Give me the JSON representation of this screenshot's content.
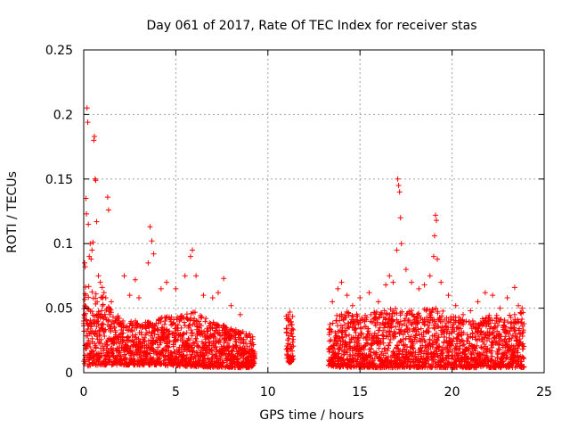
{
  "chart_data": {
    "type": "scatter",
    "title": "Day 061 of 2017, Rate Of TEC Index for receiver stas",
    "xlabel": "GPS time / hours",
    "ylabel": "ROTI / TECUs",
    "xlim": [
      0,
      25
    ],
    "ylim": [
      0,
      0.25
    ],
    "xticks": [
      0,
      5,
      10,
      15,
      20,
      25
    ],
    "yticks": [
      0,
      0.05,
      0.1,
      0.15,
      0.2,
      0.25
    ],
    "xtick_labels": [
      "0",
      "5",
      "10",
      "15",
      "20",
      "25"
    ],
    "ytick_labels": [
      "0",
      "0.05",
      "0.1",
      "0.15",
      "0.2",
      "0.25"
    ],
    "grid": true,
    "marker": "+",
    "marker_color": "#ff0000",
    "data_gaps_hours": [
      [
        9.3,
        11.0
      ],
      [
        11.4,
        13.3
      ]
    ],
    "series": [
      {
        "name": "ROTI",
        "points": [
          [
            0.05,
            0.085
          ],
          [
            0.08,
            0.082
          ],
          [
            0.1,
            0.06
          ],
          [
            0.12,
            0.135
          ],
          [
            0.15,
            0.123
          ],
          [
            0.18,
            0.205
          ],
          [
            0.22,
            0.194
          ],
          [
            0.25,
            0.115
          ],
          [
            0.3,
            0.09
          ],
          [
            0.35,
            0.1
          ],
          [
            0.4,
            0.088
          ],
          [
            0.45,
            0.095
          ],
          [
            0.5,
            0.101
          ],
          [
            0.55,
            0.18
          ],
          [
            0.58,
            0.183
          ],
          [
            0.62,
            0.15
          ],
          [
            0.65,
            0.149
          ],
          [
            0.7,
            0.117
          ],
          [
            0.8,
            0.075
          ],
          [
            0.9,
            0.07
          ],
          [
            1.0,
            0.066
          ],
          [
            1.1,
            0.062
          ],
          [
            1.2,
            0.058
          ],
          [
            1.3,
            0.136
          ],
          [
            1.35,
            0.126
          ],
          [
            1.5,
            0.055
          ],
          [
            2.2,
            0.075
          ],
          [
            2.5,
            0.06
          ],
          [
            2.8,
            0.072
          ],
          [
            3.0,
            0.058
          ],
          [
            3.5,
            0.085
          ],
          [
            3.6,
            0.113
          ],
          [
            3.7,
            0.102
          ],
          [
            3.8,
            0.092
          ],
          [
            4.2,
            0.065
          ],
          [
            4.5,
            0.07
          ],
          [
            5.0,
            0.065
          ],
          [
            5.5,
            0.075
          ],
          [
            5.8,
            0.09
          ],
          [
            5.9,
            0.095
          ],
          [
            6.1,
            0.075
          ],
          [
            6.5,
            0.06
          ],
          [
            7.0,
            0.058
          ],
          [
            7.3,
            0.062
          ],
          [
            7.6,
            0.073
          ],
          [
            8.0,
            0.052
          ],
          [
            8.5,
            0.045
          ],
          [
            9.0,
            0.03
          ],
          [
            11.1,
            0.045
          ],
          [
            11.2,
            0.047
          ],
          [
            11.25,
            0.03
          ],
          [
            11.3,
            0.02
          ],
          [
            13.5,
            0.055
          ],
          [
            13.8,
            0.065
          ],
          [
            14.0,
            0.07
          ],
          [
            14.3,
            0.06
          ],
          [
            14.6,
            0.052
          ],
          [
            15.0,
            0.058
          ],
          [
            15.5,
            0.062
          ],
          [
            16.0,
            0.055
          ],
          [
            16.4,
            0.068
          ],
          [
            16.6,
            0.075
          ],
          [
            16.8,
            0.07
          ],
          [
            17.0,
            0.095
          ],
          [
            17.05,
            0.15
          ],
          [
            17.1,
            0.145
          ],
          [
            17.15,
            0.14
          ],
          [
            17.2,
            0.12
          ],
          [
            17.25,
            0.1
          ],
          [
            17.5,
            0.08
          ],
          [
            17.8,
            0.07
          ],
          [
            18.2,
            0.065
          ],
          [
            18.5,
            0.068
          ],
          [
            18.8,
            0.075
          ],
          [
            19.0,
            0.09
          ],
          [
            19.05,
            0.106
          ],
          [
            19.1,
            0.122
          ],
          [
            19.15,
            0.118
          ],
          [
            19.2,
            0.088
          ],
          [
            19.4,
            0.07
          ],
          [
            19.8,
            0.06
          ],
          [
            20.2,
            0.052
          ],
          [
            20.6,
            0.045
          ],
          [
            21.0,
            0.048
          ],
          [
            21.4,
            0.055
          ],
          [
            21.8,
            0.062
          ],
          [
            22.2,
            0.06
          ],
          [
            22.6,
            0.05
          ],
          [
            23.0,
            0.058
          ],
          [
            23.4,
            0.066
          ],
          [
            23.6,
            0.052
          ],
          [
            23.8,
            0.05
          ]
        ],
        "density_envelope": {
          "x": [
            0,
            1,
            2,
            3,
            4,
            5,
            6,
            7,
            8,
            9,
            9.3,
            11.0,
            11.4,
            13.3,
            14,
            15,
            16,
            17,
            18,
            19,
            20,
            21,
            22,
            23,
            23.9
          ],
          "min": [
            0.005,
            0.006,
            0.006,
            0.006,
            0.006,
            0.005,
            0.005,
            0.004,
            0.004,
            0.004,
            0.004,
            0.008,
            0.008,
            0.005,
            0.004,
            0.004,
            0.004,
            0.004,
            0.004,
            0.004,
            0.004,
            0.004,
            0.004,
            0.004,
            0.004
          ],
          "max": [
            0.07,
            0.06,
            0.042,
            0.04,
            0.042,
            0.045,
            0.048,
            0.04,
            0.035,
            0.03,
            0.028,
            0.045,
            0.045,
            0.038,
            0.048,
            0.045,
            0.048,
            0.05,
            0.048,
            0.052,
            0.045,
            0.04,
            0.045,
            0.045,
            0.048
          ]
        }
      }
    ]
  }
}
